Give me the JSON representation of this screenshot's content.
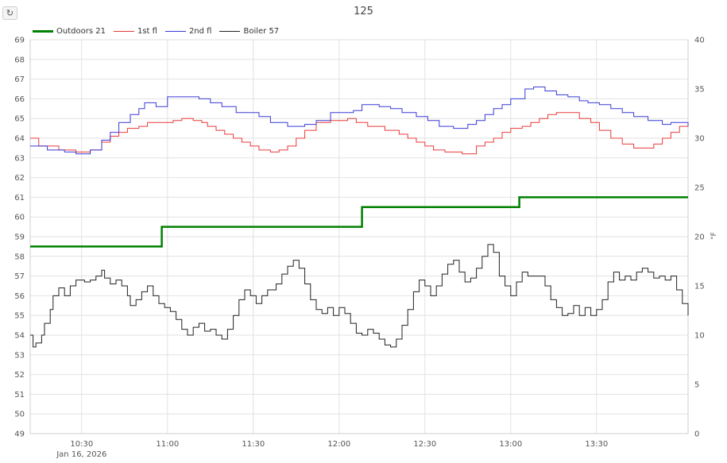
{
  "toolbar": {
    "refresh_icon": "refresh-icon",
    "refresh_glyph": "↻"
  },
  "chart_data": {
    "type": "line",
    "title": "125",
    "left_axis": {
      "min": 49,
      "max": 69,
      "step": 1
    },
    "right_axis": {
      "min": 0,
      "max": 40,
      "step": 5,
      "label": "°F"
    },
    "x_range": [
      "10:12",
      "14:02"
    ],
    "x_ticks": [
      "10:30",
      "11:00",
      "11:30",
      "12:00",
      "12:30",
      "13:00",
      "13:30"
    ],
    "x_date_label": "Jan 16, 2026",
    "grid": true,
    "legend_position": "top-left",
    "series": [
      {
        "name": "Outdoors 21",
        "color": "#008000",
        "axis": "right",
        "step": true,
        "points": [
          [
            "10:12",
            19
          ],
          [
            "10:58",
            19
          ],
          [
            "10:58",
            21
          ],
          [
            "12:08",
            21
          ],
          [
            "12:08",
            23
          ],
          [
            "13:03",
            23
          ],
          [
            "13:03",
            24
          ],
          [
            "14:02",
            24
          ]
        ]
      },
      {
        "name": "1st fl",
        "color": "#e83a3a",
        "axis": "left",
        "step": true,
        "points": [
          [
            "10:12",
            64.0
          ],
          [
            "10:15",
            63.6
          ],
          [
            "10:22",
            63.4
          ],
          [
            "10:28",
            63.3
          ],
          [
            "10:33",
            63.4
          ],
          [
            "10:37",
            63.8
          ],
          [
            "10:40",
            64.1
          ],
          [
            "10:43",
            64.3
          ],
          [
            "10:46",
            64.5
          ],
          [
            "10:50",
            64.6
          ],
          [
            "10:53",
            64.8
          ],
          [
            "11:02",
            64.9
          ],
          [
            "11:05",
            65.0
          ],
          [
            "11:09",
            64.9
          ],
          [
            "11:12",
            64.8
          ],
          [
            "11:14",
            64.6
          ],
          [
            "11:17",
            64.4
          ],
          [
            "11:20",
            64.2
          ],
          [
            "11:23",
            64.0
          ],
          [
            "11:26",
            63.8
          ],
          [
            "11:29",
            63.6
          ],
          [
            "11:32",
            63.4
          ],
          [
            "11:36",
            63.3
          ],
          [
            "11:39",
            63.4
          ],
          [
            "11:42",
            63.6
          ],
          [
            "11:45",
            64.0
          ],
          [
            "11:48",
            64.4
          ],
          [
            "11:52",
            64.8
          ],
          [
            "11:57",
            64.9
          ],
          [
            "12:03",
            65.0
          ],
          [
            "12:06",
            64.8
          ],
          [
            "12:10",
            64.6
          ],
          [
            "12:16",
            64.4
          ],
          [
            "12:21",
            64.2
          ],
          [
            "12:24",
            64.0
          ],
          [
            "12:27",
            63.8
          ],
          [
            "12:30",
            63.6
          ],
          [
            "12:33",
            63.4
          ],
          [
            "12:37",
            63.3
          ],
          [
            "12:43",
            63.2
          ],
          [
            "12:48",
            63.6
          ],
          [
            "12:51",
            63.8
          ],
          [
            "12:54",
            64.0
          ],
          [
            "12:57",
            64.3
          ],
          [
            "13:00",
            64.5
          ],
          [
            "13:04",
            64.6
          ],
          [
            "13:07",
            64.8
          ],
          [
            "13:10",
            65.0
          ],
          [
            "13:13",
            65.2
          ],
          [
            "13:16",
            65.3
          ],
          [
            "13:24",
            65.0
          ],
          [
            "13:28",
            64.8
          ],
          [
            "13:31",
            64.4
          ],
          [
            "13:35",
            64.0
          ],
          [
            "13:39",
            63.7
          ],
          [
            "13:43",
            63.5
          ],
          [
            "13:50",
            63.7
          ],
          [
            "13:53",
            64.0
          ],
          [
            "13:56",
            64.3
          ],
          [
            "13:59",
            64.6
          ],
          [
            "14:02",
            64.8
          ]
        ]
      },
      {
        "name": "2nd fl",
        "color": "#3a3ad6",
        "axis": "left",
        "step": true,
        "points": [
          [
            "10:12",
            63.6
          ],
          [
            "10:18",
            63.4
          ],
          [
            "10:24",
            63.3
          ],
          [
            "10:28",
            63.2
          ],
          [
            "10:33",
            63.4
          ],
          [
            "10:37",
            63.9
          ],
          [
            "10:40",
            64.3
          ],
          [
            "10:43",
            64.8
          ],
          [
            "10:47",
            65.2
          ],
          [
            "10:50",
            65.5
          ],
          [
            "10:52",
            65.8
          ],
          [
            "10:56",
            65.6
          ],
          [
            "11:00",
            66.1
          ],
          [
            "11:11",
            66.0
          ],
          [
            "11:15",
            65.8
          ],
          [
            "11:19",
            65.6
          ],
          [
            "11:24",
            65.3
          ],
          [
            "11:32",
            65.1
          ],
          [
            "11:36",
            64.8
          ],
          [
            "11:42",
            64.6
          ],
          [
            "11:48",
            64.7
          ],
          [
            "11:52",
            64.9
          ],
          [
            "11:57",
            65.3
          ],
          [
            "12:05",
            65.4
          ],
          [
            "12:08",
            65.7
          ],
          [
            "12:14",
            65.6
          ],
          [
            "12:18",
            65.5
          ],
          [
            "12:22",
            65.3
          ],
          [
            "12:27",
            65.1
          ],
          [
            "12:31",
            64.9
          ],
          [
            "12:35",
            64.6
          ],
          [
            "12:40",
            64.5
          ],
          [
            "12:45",
            64.7
          ],
          [
            "12:48",
            64.9
          ],
          [
            "12:51",
            65.2
          ],
          [
            "12:54",
            65.5
          ],
          [
            "12:57",
            65.7
          ],
          [
            "13:00",
            66.0
          ],
          [
            "13:05",
            66.5
          ],
          [
            "13:08",
            66.6
          ],
          [
            "13:12",
            66.4
          ],
          [
            "13:16",
            66.2
          ],
          [
            "13:20",
            66.1
          ],
          [
            "13:24",
            65.9
          ],
          [
            "13:27",
            65.8
          ],
          [
            "13:31",
            65.7
          ],
          [
            "13:35",
            65.5
          ],
          [
            "13:39",
            65.3
          ],
          [
            "13:43",
            65.1
          ],
          [
            "13:48",
            64.9
          ],
          [
            "13:53",
            64.7
          ],
          [
            "13:56",
            64.8
          ],
          [
            "14:02",
            64.6
          ]
        ]
      },
      {
        "name": "Boiler 57",
        "color": "#222222",
        "axis": "left",
        "step": true,
        "points": [
          [
            "10:12",
            54.0
          ],
          [
            "10:13",
            53.4
          ],
          [
            "10:14",
            53.6
          ],
          [
            "10:16",
            54.0
          ],
          [
            "10:17",
            54.6
          ],
          [
            "10:19",
            55.3
          ],
          [
            "10:20",
            56.0
          ],
          [
            "10:22",
            56.4
          ],
          [
            "10:24",
            56.0
          ],
          [
            "10:26",
            56.5
          ],
          [
            "10:28",
            56.8
          ],
          [
            "10:31",
            56.7
          ],
          [
            "10:33",
            56.8
          ],
          [
            "10:35",
            57.0
          ],
          [
            "10:37",
            57.3
          ],
          [
            "10:38",
            56.9
          ],
          [
            "10:40",
            56.6
          ],
          [
            "10:42",
            56.8
          ],
          [
            "10:44",
            56.5
          ],
          [
            "10:46",
            56.0
          ],
          [
            "10:47",
            55.5
          ],
          [
            "10:49",
            55.8
          ],
          [
            "10:51",
            56.2
          ],
          [
            "10:53",
            56.5
          ],
          [
            "10:55",
            56.0
          ],
          [
            "10:57",
            55.6
          ],
          [
            "10:59",
            55.4
          ],
          [
            "11:01",
            55.2
          ],
          [
            "11:03",
            54.8
          ],
          [
            "11:05",
            54.3
          ],
          [
            "11:07",
            54.0
          ],
          [
            "11:09",
            54.4
          ],
          [
            "11:11",
            54.6
          ],
          [
            "11:13",
            54.2
          ],
          [
            "11:15",
            54.3
          ],
          [
            "11:17",
            54.0
          ],
          [
            "11:19",
            53.8
          ],
          [
            "11:21",
            54.3
          ],
          [
            "11:23",
            55.0
          ],
          [
            "11:25",
            55.8
          ],
          [
            "11:27",
            56.3
          ],
          [
            "11:29",
            56.0
          ],
          [
            "11:31",
            55.6
          ],
          [
            "11:33",
            56.0
          ],
          [
            "11:35",
            56.3
          ],
          [
            "11:38",
            56.6
          ],
          [
            "11:40",
            57.1
          ],
          [
            "11:42",
            57.5
          ],
          [
            "11:44",
            57.8
          ],
          [
            "11:46",
            57.4
          ],
          [
            "11:48",
            56.6
          ],
          [
            "11:50",
            55.8
          ],
          [
            "11:52",
            55.3
          ],
          [
            "11:54",
            55.1
          ],
          [
            "11:56",
            55.4
          ],
          [
            "11:58",
            55.0
          ],
          [
            "12:00",
            55.4
          ],
          [
            "12:02",
            55.1
          ],
          [
            "12:04",
            54.6
          ],
          [
            "12:06",
            54.1
          ],
          [
            "12:08",
            54.0
          ],
          [
            "12:10",
            54.3
          ],
          [
            "12:12",
            54.1
          ],
          [
            "12:14",
            53.8
          ],
          [
            "12:16",
            53.5
          ],
          [
            "12:18",
            53.4
          ],
          [
            "12:20",
            53.8
          ],
          [
            "12:22",
            54.5
          ],
          [
            "12:24",
            55.3
          ],
          [
            "12:26",
            56.2
          ],
          [
            "12:28",
            56.8
          ],
          [
            "12:30",
            56.5
          ],
          [
            "12:32",
            56.0
          ],
          [
            "12:34",
            56.5
          ],
          [
            "12:36",
            57.1
          ],
          [
            "12:38",
            57.6
          ],
          [
            "12:40",
            57.8
          ],
          [
            "12:42",
            57.2
          ],
          [
            "12:44",
            56.7
          ],
          [
            "12:46",
            56.9
          ],
          [
            "12:48",
            57.4
          ],
          [
            "12:50",
            58.0
          ],
          [
            "12:52",
            58.6
          ],
          [
            "12:54",
            58.2
          ],
          [
            "12:56",
            57.0
          ],
          [
            "12:58",
            56.5
          ],
          [
            "13:00",
            56.0
          ],
          [
            "13:02",
            56.7
          ],
          [
            "13:04",
            57.2
          ],
          [
            "13:06",
            57.0
          ],
          [
            "13:10",
            57.0
          ],
          [
            "13:12",
            56.5
          ],
          [
            "13:14",
            55.8
          ],
          [
            "13:16",
            55.4
          ],
          [
            "13:18",
            55.0
          ],
          [
            "13:20",
            55.1
          ],
          [
            "13:22",
            55.5
          ],
          [
            "13:24",
            55.0
          ],
          [
            "13:26",
            55.4
          ],
          [
            "13:28",
            55.0
          ],
          [
            "13:30",
            55.3
          ],
          [
            "13:32",
            55.8
          ],
          [
            "13:34",
            56.7
          ],
          [
            "13:36",
            57.2
          ],
          [
            "13:38",
            56.8
          ],
          [
            "13:40",
            57.0
          ],
          [
            "13:42",
            56.8
          ],
          [
            "13:44",
            57.2
          ],
          [
            "13:46",
            57.4
          ],
          [
            "13:48",
            57.2
          ],
          [
            "13:50",
            56.9
          ],
          [
            "13:52",
            57.0
          ],
          [
            "13:54",
            56.8
          ],
          [
            "13:56",
            57.0
          ],
          [
            "13:58",
            56.3
          ],
          [
            "14:00",
            55.6
          ],
          [
            "14:02",
            55.0
          ]
        ]
      }
    ]
  }
}
